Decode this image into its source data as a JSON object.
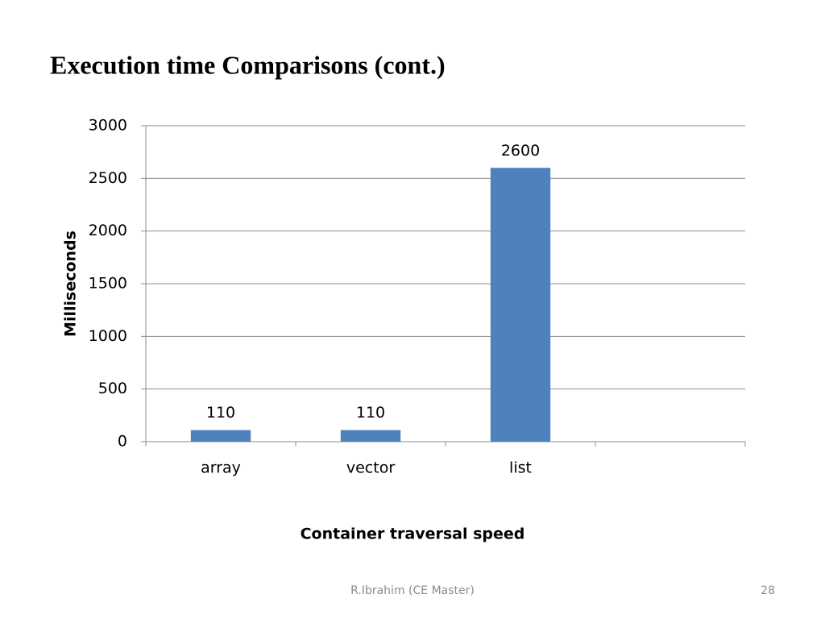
{
  "chart_data": {
    "type": "bar",
    "title": "Execution time Comparisons (cont.)",
    "categories": [
      "array",
      "vector",
      "list",
      null
    ],
    "values": [
      110,
      110,
      2600,
      null
    ],
    "color": "#4f81bd",
    "ylim": [
      0,
      3000
    ],
    "yticks": [
      0,
      500,
      1000,
      1500,
      2000,
      2500,
      3000
    ],
    "grid": true,
    "ylabel": "Milliseconds",
    "xlabel": "Container traversal speed"
  },
  "footer": {
    "author": "R.Ibrahim (CE Master)",
    "page": 28
  }
}
